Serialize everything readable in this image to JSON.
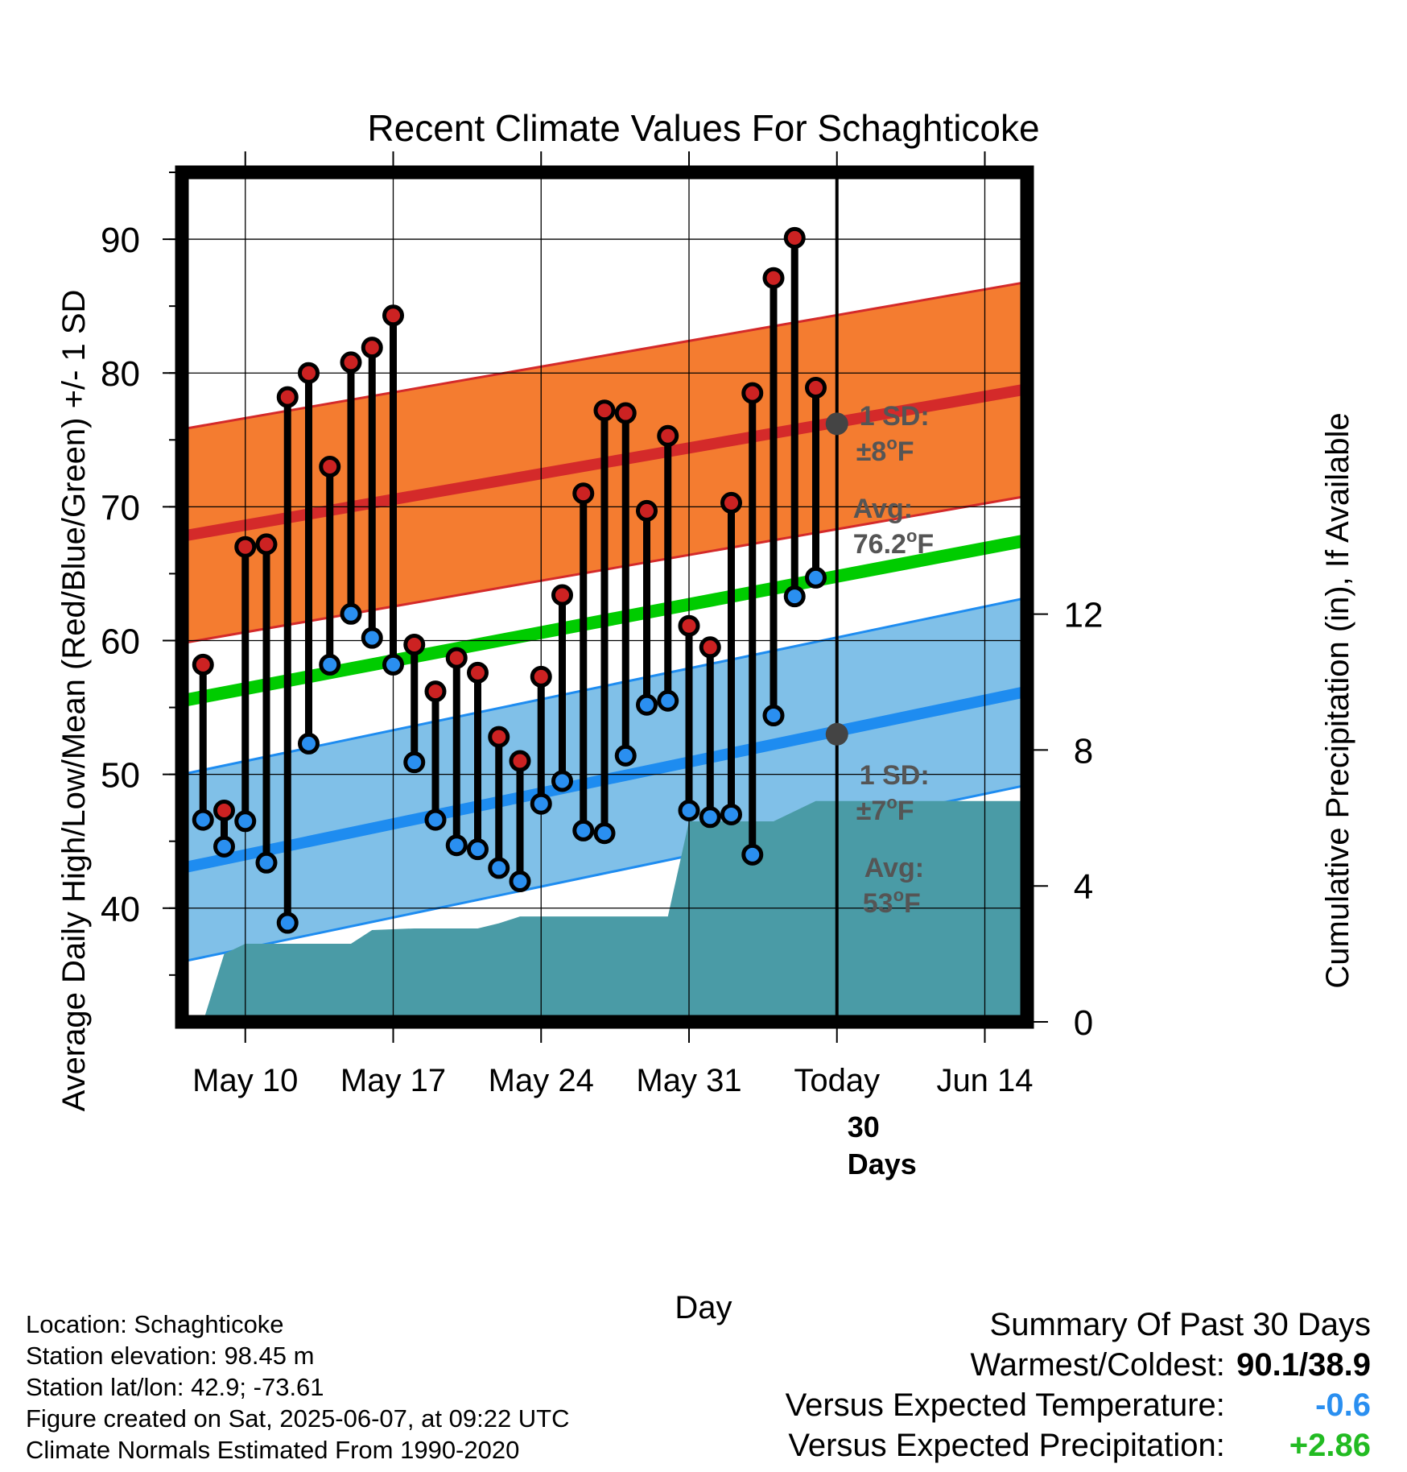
{
  "chart_data": {
    "type": "line",
    "title": "Recent Climate Values For Schaghticoke",
    "xlabel": "Day",
    "ylabel": "Average Daily High/Low/Mean (Red/Blue/Green) +/- 1 SD",
    "y2label": "Cumulative Precipitation (in), If Available",
    "ylim": [
      31.5,
      95
    ],
    "y2lim": [
      0,
      25
    ],
    "y_ticks": [
      40,
      50,
      60,
      70,
      80,
      90
    ],
    "y2_ticks": [
      0,
      4,
      8,
      12
    ],
    "x_ticks": [
      "May 10",
      "May 17",
      "May 24",
      "May 31",
      "Today",
      "Jun 14"
    ],
    "x_range": [
      "2025-05-07",
      "2025-06-16"
    ],
    "x_tick_dates": [
      "2025-05-10",
      "2025-05-17",
      "2025-05-24",
      "2025-05-31",
      "2025-06-07",
      "2025-06-14"
    ],
    "today": "2025-06-07",
    "today_label": "30 Days",
    "dates": [
      "2025-05-08",
      "2025-05-09",
      "2025-05-10",
      "2025-05-11",
      "2025-05-12",
      "2025-05-13",
      "2025-05-14",
      "2025-05-15",
      "2025-05-16",
      "2025-05-17",
      "2025-05-18",
      "2025-05-19",
      "2025-05-20",
      "2025-05-21",
      "2025-05-22",
      "2025-05-23",
      "2025-05-24",
      "2025-05-25",
      "2025-05-26",
      "2025-05-27",
      "2025-05-28",
      "2025-05-29",
      "2025-05-30",
      "2025-05-31",
      "2025-06-01",
      "2025-06-02",
      "2025-06-03",
      "2025-06-04",
      "2025-06-05",
      "2025-06-06"
    ],
    "series": [
      {
        "name": "High",
        "color": "#cc2222",
        "values": [
          58.2,
          47.3,
          67.0,
          67.2,
          78.2,
          80.0,
          73.0,
          80.8,
          81.9,
          84.3,
          59.7,
          56.2,
          58.7,
          57.6,
          52.8,
          51.0,
          57.3,
          63.4,
          71.0,
          77.2,
          77.0,
          69.7,
          75.3,
          61.1,
          59.5,
          70.3,
          78.5,
          87.1,
          90.1,
          78.9
        ]
      },
      {
        "name": "Low",
        "color": "#2a8ff0",
        "values": [
          46.6,
          44.6,
          46.5,
          43.4,
          38.9,
          52.3,
          58.2,
          62.0,
          60.2,
          58.2,
          50.9,
          46.6,
          44.7,
          44.4,
          43.0,
          42.0,
          47.8,
          49.5,
          45.8,
          45.6,
          51.4,
          55.2,
          55.5,
          47.3,
          46.8,
          47.0,
          44.0,
          54.4,
          63.3,
          64.7
        ]
      }
    ],
    "normal_high": {
      "start": 67.8,
      "end": 78.8,
      "sd": 8,
      "avg_today": 76.2
    },
    "normal_low": {
      "start": 43.0,
      "end": 56.2,
      "sd": 7,
      "avg_today": 53
    },
    "normal_mean": {
      "start": 55.5,
      "end": 67.5
    },
    "precip_cumulative": [
      [
        "2025-05-08",
        0.0
      ],
      [
        "2025-05-09",
        2.0
      ],
      [
        "2025-05-10",
        2.3
      ],
      [
        "2025-05-11",
        2.3
      ],
      [
        "2025-05-15",
        2.3
      ],
      [
        "2025-05-16",
        2.7
      ],
      [
        "2025-05-18",
        2.75
      ],
      [
        "2025-05-21",
        2.75
      ],
      [
        "2025-05-22",
        2.9
      ],
      [
        "2025-05-23",
        3.1
      ],
      [
        "2025-05-29",
        3.1
      ],
      [
        "2025-05-30",
        3.1
      ],
      [
        "2025-05-31",
        5.9
      ],
      [
        "2025-06-04",
        5.9
      ],
      [
        "2025-06-05",
        6.2
      ],
      [
        "2025-06-06",
        6.5
      ],
      [
        "2025-06-16",
        6.5
      ]
    ],
    "annotations": {
      "high_sd_title": "1 SD:",
      "high_sd_value": "±8",
      "high_avg_title": "Avg:",
      "high_avg_value": "76.2",
      "low_sd_title": "1 SD:",
      "low_sd_value": "±7",
      "low_avg_title": "Avg:",
      "low_avg_value": "53",
      "deg_sup": "o",
      "unit": "F"
    },
    "grid": true,
    "colors": {
      "high_band": "#f47c30",
      "low_band": "#80c0e8",
      "mean_line": "#00cc00",
      "high_line": "#d42a2a",
      "low_line": "#1e8cf0",
      "precip": "#4a9ba6",
      "marker_today": "#444444",
      "annotation_text": "#555555"
    }
  },
  "footer": {
    "location": "Location: Schaghticoke",
    "elevation": "Station elevation: 98.45 m",
    "latlon": "Station lat/lon: 42.9; -73.61",
    "created": "Figure created on Sat, 2025-06-07, at 09:22 UTC",
    "normals": "Climate Normals Estimated From 1990-2020"
  },
  "summary": {
    "title": "Summary Of Past 30 Days",
    "warm_label": "Warmest/Coldest:",
    "warm_value": "90.1/38.9",
    "temp_label": "Versus Expected Temperature:",
    "temp_value": "-0.6",
    "temp_color": "#2a8ff0",
    "precip_label": "Versus Expected Precipitation:",
    "precip_value": "+2.86",
    "precip_color": "#22bb22"
  }
}
